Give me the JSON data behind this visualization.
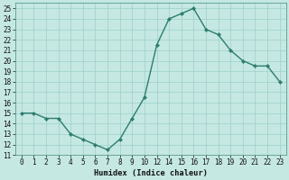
{
  "x_indices": [
    0,
    1,
    2,
    3,
    4,
    5,
    6,
    7,
    8,
    9,
    10,
    11,
    12,
    13,
    14,
    15,
    16,
    17,
    18,
    19,
    20,
    21
  ],
  "x_labels": [
    "0",
    "1",
    "2",
    "3",
    "4",
    "5",
    "6",
    "7",
    "8",
    "9",
    "10",
    "12",
    "14",
    "15",
    "16",
    "17",
    "18",
    "19",
    "20",
    "21",
    "22",
    "23"
  ],
  "y": [
    15,
    15,
    14.5,
    14.5,
    13,
    12.5,
    12,
    11.5,
    12.5,
    14.5,
    16.5,
    21.5,
    24,
    24.5,
    25,
    23,
    22.5,
    21,
    20,
    19.5,
    19.5,
    18
  ],
  "line_color": "#2d7d6e",
  "marker": "D",
  "marker_size": 2.2,
  "line_width": 1.0,
  "bg_color": "#c5e8e3",
  "grid_color_major": "#9ecfca",
  "grid_color_minor": "#b8ddd9",
  "xlabel": "Humidex (Indice chaleur)",
  "xlim": [
    -0.5,
    21.5
  ],
  "ylim": [
    11,
    25.5
  ],
  "yticks": [
    11,
    12,
    13,
    14,
    15,
    16,
    17,
    18,
    19,
    20,
    21,
    22,
    23,
    24,
    25
  ],
  "tick_fontsize": 5.5,
  "xlabel_fontsize": 6.2
}
